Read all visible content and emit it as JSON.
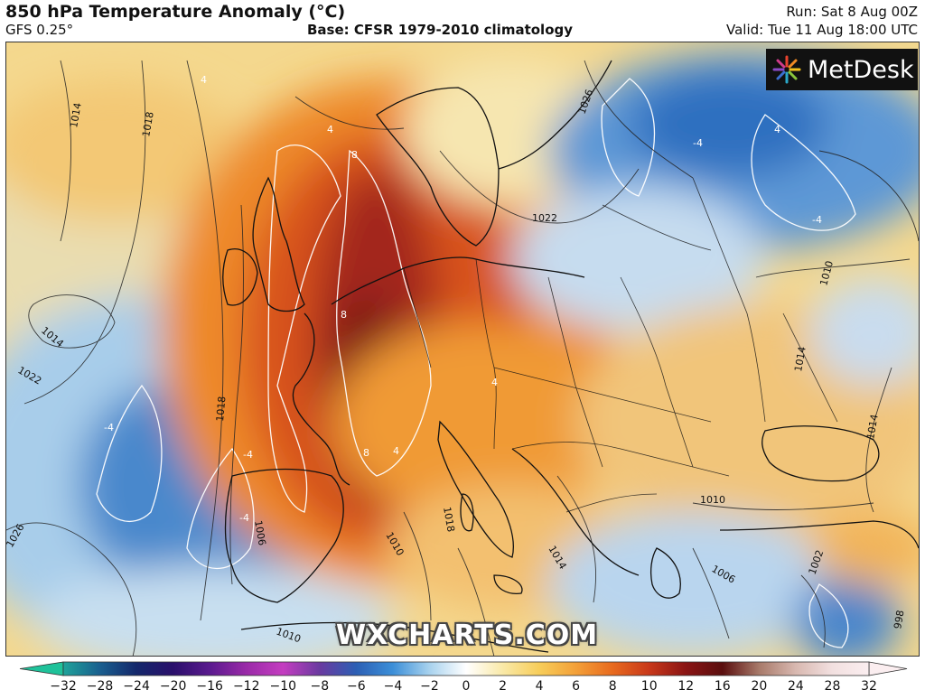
{
  "header": {
    "title": "850 hPa Temperature Anomaly (°C)",
    "model": "GFS 0.25°",
    "base": "Base: CFSR 1979-2010 climatology",
    "run": "Run: Sat 8 Aug 00Z",
    "valid": "Valid: Tue 11 Aug 18:00 UTC"
  },
  "logo": {
    "text": "MetDesk",
    "icon": "metdesk-burst-icon"
  },
  "watermark": "WXCHARTS.COM",
  "isobar_labels": [
    "1014",
    "1018",
    "1014",
    "1022",
    "1018",
    "1026",
    "1026",
    "1022",
    "1010",
    "1014",
    "1006",
    "1018",
    "1014",
    "1010",
    "1006",
    "1010",
    "1002",
    "998",
    "1014",
    "1010"
  ],
  "anomaly_labels": [
    "4",
    "4",
    "8",
    "8",
    "-4",
    "-4",
    "-4",
    "4",
    "-4",
    "-4",
    "8",
    "4",
    "4"
  ],
  "colorbar": {
    "ticks": [
      "−32",
      "−28",
      "−24",
      "−20",
      "−16",
      "−12",
      "−10",
      "−8",
      "−6",
      "−4",
      "−2",
      "0",
      "2",
      "4",
      "6",
      "8",
      "10",
      "12",
      "16",
      "20",
      "24",
      "28",
      "32"
    ],
    "colors": [
      "#1fa39a",
      "#1a5f8f",
      "#14286b",
      "#2a0f6b",
      "#5a1a8e",
      "#9a2aa8",
      "#c43dc0",
      "#6a3aa0",
      "#2c5fb4",
      "#3c8fd8",
      "#a8d2ee",
      "#ffffff",
      "#f9e9a8",
      "#f7cd5a",
      "#f3a038",
      "#e86a1e",
      "#c8381a",
      "#8a1414",
      "#5a0e0e",
      "#a87a6a",
      "#d8b8b0",
      "#f2e0e0",
      "#fbeef0"
    ]
  }
}
